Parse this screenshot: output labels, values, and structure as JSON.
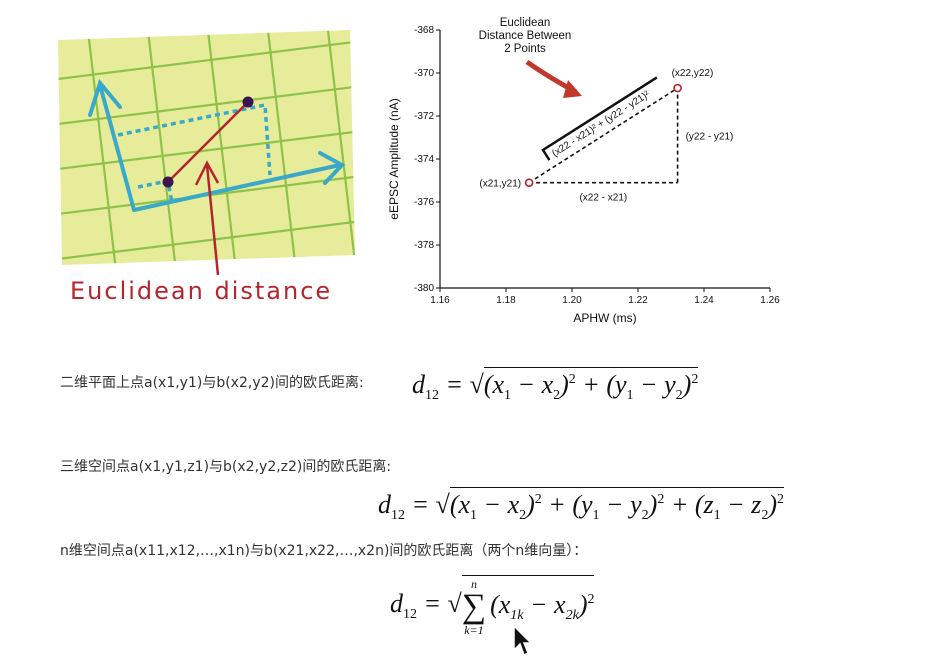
{
  "illustration": {
    "label": "Euclidean distance",
    "colors": {
      "paper": "#e6ec9a",
      "grid": "#8fc24a",
      "axis": "#3aa9c9",
      "line": "#b3262e",
      "point": "#3b1450"
    }
  },
  "chart_data": {
    "type": "scatter",
    "title": "Euclidean Distance Between 2 Points",
    "title_lines": [
      "Euclidean",
      "Distance Between",
      "2 Points"
    ],
    "xlabel": "APHW (ms)",
    "ylabel": "eEPSC Amplitude (nA)",
    "xlim": [
      1.16,
      1.26
    ],
    "ylim": [
      -380,
      -368
    ],
    "xticks": [
      "1.16",
      "1.18",
      "1.20",
      "1.22",
      "1.24",
      "1.26"
    ],
    "yticks": [
      "-368",
      "-370",
      "-372",
      "-374",
      "-376",
      "-378",
      "-380"
    ],
    "grid": false,
    "points": [
      {
        "x": 1.187,
        "y": -375.1,
        "label": "(x21,y21)"
      },
      {
        "x": 1.232,
        "y": -370.7,
        "label": "(x22,y22)"
      }
    ],
    "annotations": {
      "hypotenuse": "(x22 - x21)² + (y22 - y21)²",
      "horizontal": "(x22 - x21)",
      "vertical": "(y22 - y21)"
    },
    "colors": {
      "point": "#b3262e",
      "arrow": "#c0392b"
    }
  },
  "formulas": {
    "f2d": {
      "desc": "二维平面上点a(x1,y1)与b(x2,y2)间的欧氏距离:",
      "latex": "d_{12}=\\sqrt{(x_1-x_2)^2+(y_1-y_2)^2}"
    },
    "f3d": {
      "desc": "三维空间点a(x1,y1,z1)与b(x2,y2,z2)间的欧氏距离:",
      "latex": "d_{12}=\\sqrt{(x_1-x_2)^2+(y_1-y_2)^2+(z_1-z_2)^2}"
    },
    "fnd": {
      "desc": "n维空间点a(x11,x12,…,x1n)与b(x21,x22,…,x2n)间的欧氏距离（两个n维向量）：",
      "latex": "d_{12}=\\sqrt{\\sum_{k=1}^{n}(x_{1k}-x_{2k})^2}"
    }
  }
}
